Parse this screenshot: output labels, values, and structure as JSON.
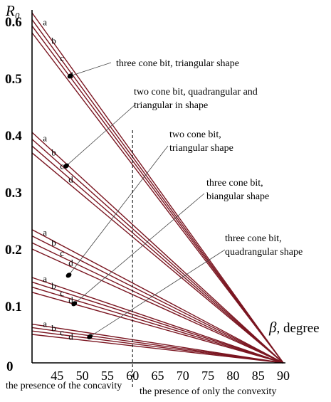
{
  "chart_data": {
    "type": "line",
    "ylabel": "R₀",
    "xlabel_symbol": "β",
    "xlabel_unit": ", degree",
    "xlim": [
      40,
      90
    ],
    "ylim": [
      0,
      0.62
    ],
    "xticks": [
      "45",
      "50",
      "55",
      "60",
      "65",
      "70",
      "75",
      "80",
      "85",
      "90"
    ],
    "x_origin_label": "0",
    "yticks": [
      "0.1",
      "0.2",
      "0.3",
      "0.4",
      "0.5",
      "0.6"
    ],
    "divider_x": 60,
    "region_left_label": "the presence of the concavity",
    "region_right_label": "the presence of only the convexity",
    "groups": [
      {
        "name": "three cone bit, triangular shape",
        "label_lines": [
          "three cone bit, triangular shape"
        ],
        "series": [
          {
            "name": "a",
            "points": [
              [
                40,
                0.615
              ],
              [
                90,
                0.0
              ]
            ]
          },
          {
            "name": "b",
            "points": [
              [
                40,
                0.603
              ],
              [
                90,
                0.0
              ]
            ]
          },
          {
            "name": "c",
            "points": [
              [
                40,
                0.592
              ],
              [
                90,
                0.0
              ]
            ]
          },
          {
            "name": "d",
            "points": [
              [
                40,
                0.58
              ],
              [
                90,
                0.0
              ]
            ]
          }
        ],
        "marker": [
          47.6,
          0.504
        ]
      },
      {
        "name": "two cone bit, quadrangular and triangular in shape",
        "label_lines": [
          "two cone bit, quadrangular and",
          "triangular in shape"
        ],
        "series": [
          {
            "name": "a",
            "points": [
              [
                40,
                0.405
              ],
              [
                90,
                0.0
              ]
            ]
          },
          {
            "name": "b",
            "points": [
              [
                40,
                0.393
              ],
              [
                90,
                0.0
              ]
            ]
          },
          {
            "name": "c",
            "points": [
              [
                40,
                0.381
              ],
              [
                90,
                0.0
              ]
            ]
          },
          {
            "name": "d",
            "points": [
              [
                40,
                0.369
              ],
              [
                90,
                0.0
              ]
            ]
          }
        ],
        "marker": [
          46.8,
          0.346
        ]
      },
      {
        "name": "two cone bit, triangular shape",
        "label_lines": [
          "two cone bit,",
          "triangular shape"
        ],
        "series": [
          {
            "name": "a",
            "points": [
              [
                40,
                0.234
              ],
              [
                90,
                0.0
              ]
            ]
          },
          {
            "name": "b",
            "points": [
              [
                40,
                0.223
              ],
              [
                90,
                0.0
              ]
            ]
          },
          {
            "name": "c",
            "points": [
              [
                40,
                0.211
              ],
              [
                90,
                0.0
              ]
            ]
          },
          {
            "name": "d",
            "points": [
              [
                40,
                0.2
              ],
              [
                90,
                0.0
              ]
            ]
          }
        ],
        "marker": [
          47.3,
          0.154
        ]
      },
      {
        "name": "three cone bit, biangular shape",
        "label_lines": [
          "three cone bit,",
          "biangular shape"
        ],
        "series": [
          {
            "name": "a",
            "points": [
              [
                40,
                0.15
              ],
              [
                90,
                0.0
              ]
            ]
          },
          {
            "name": "b",
            "points": [
              [
                40,
                0.142
              ],
              [
                90,
                0.0
              ]
            ]
          },
          {
            "name": "c",
            "points": [
              [
                40,
                0.133
              ],
              [
                90,
                0.0
              ]
            ]
          },
          {
            "name": "d",
            "points": [
              [
                40,
                0.124
              ],
              [
                90,
                0.0
              ]
            ]
          }
        ],
        "marker": [
          48.4,
          0.104
        ]
      },
      {
        "name": "three cone bit, quadrangular shape",
        "label_lines": [
          "three cone bit,",
          "quadrangular shape"
        ],
        "series": [
          {
            "name": "a",
            "points": [
              [
                40,
                0.068
              ],
              [
                90,
                0.0
              ]
            ]
          },
          {
            "name": "b",
            "points": [
              [
                40,
                0.062
              ],
              [
                90,
                0.0
              ]
            ]
          },
          {
            "name": "c",
            "points": [
              [
                40,
                0.056
              ],
              [
                90,
                0.0
              ]
            ]
          },
          {
            "name": "d",
            "points": [
              [
                40,
                0.05
              ],
              [
                90,
                0.0
              ]
            ]
          }
        ],
        "marker": [
          51.5,
          0.046
        ]
      }
    ],
    "line_color": "#7a1520",
    "marker_color": "#000000",
    "grid": false
  }
}
